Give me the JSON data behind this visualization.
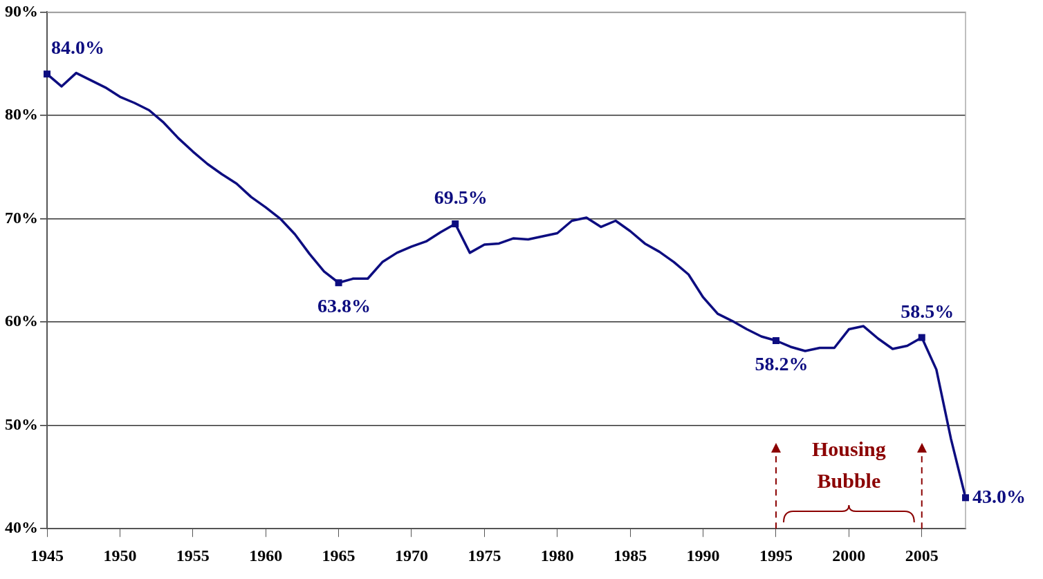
{
  "chart_data": {
    "type": "line",
    "x": [
      1945,
      1946,
      1947,
      1948,
      1949,
      1950,
      1951,
      1952,
      1953,
      1954,
      1955,
      1956,
      1957,
      1958,
      1959,
      1960,
      1961,
      1962,
      1963,
      1964,
      1965,
      1966,
      1967,
      1968,
      1969,
      1970,
      1971,
      1972,
      1973,
      1974,
      1975,
      1976,
      1977,
      1978,
      1979,
      1980,
      1981,
      1982,
      1983,
      1984,
      1985,
      1986,
      1987,
      1988,
      1989,
      1990,
      1991,
      1992,
      1993,
      1994,
      1995,
      1996,
      1997,
      1998,
      1999,
      2000,
      2001,
      2002,
      2003,
      2004,
      2005,
      2006,
      2007,
      2008
    ],
    "series": [
      {
        "color": "#0d0d80",
        "values": [
          84.0,
          82.8,
          84.1,
          83.4,
          82.7,
          81.8,
          81.2,
          80.5,
          79.3,
          77.8,
          76.5,
          75.3,
          74.3,
          73.4,
          72.1,
          71.1,
          70.0,
          68.5,
          66.6,
          64.9,
          63.8,
          64.2,
          64.2,
          65.8,
          66.7,
          67.3,
          67.8,
          68.7,
          69.5,
          66.7,
          67.5,
          67.6,
          68.1,
          68.0,
          68.3,
          68.6,
          69.8,
          70.1,
          69.2,
          69.8,
          68.8,
          67.6,
          66.8,
          65.8,
          64.6,
          62.4,
          60.8,
          60.1,
          59.3,
          58.6,
          58.2,
          57.6,
          57.2,
          57.5,
          57.5,
          59.3,
          59.6,
          58.4,
          57.4,
          57.7,
          58.5,
          55.4,
          48.7,
          43.0
        ],
        "value_labels": [
          "84.0%",
          null,
          null,
          null,
          null,
          null,
          null,
          null,
          null,
          null,
          null,
          null,
          null,
          null,
          null,
          null,
          null,
          null,
          null,
          null,
          "63.8%",
          null,
          null,
          null,
          null,
          null,
          null,
          null,
          "69.5%",
          null,
          null,
          null,
          null,
          null,
          null,
          null,
          null,
          null,
          null,
          null,
          null,
          null,
          null,
          null,
          null,
          null,
          null,
          null,
          null,
          null,
          "58.2%",
          null,
          null,
          null,
          null,
          null,
          null,
          null,
          null,
          null,
          "58.5%",
          null,
          null,
          "43.0%"
        ]
      }
    ],
    "xlim": [
      1945,
      2008
    ],
    "xticks": [
      1945,
      1950,
      1955,
      1960,
      1965,
      1970,
      1975,
      1980,
      1985,
      1990,
      1995,
      2000,
      2005
    ],
    "ylim": [
      40,
      90
    ],
    "yticks": [
      {
        "value": 40,
        "label": "40%"
      },
      {
        "value": 50,
        "label": "50%"
      },
      {
        "value": 60,
        "label": "60%"
      },
      {
        "value": 70,
        "label": "70%"
      },
      {
        "value": 80,
        "label": "80%"
      },
      {
        "value": 90,
        "label": "90%"
      }
    ],
    "grid": "y",
    "legend": false,
    "ref_lines": [
      {
        "axis": "x",
        "value": 1995,
        "color": "#8b0000",
        "line_style": "dashed"
      },
      {
        "axis": "x",
        "value": 2005,
        "color": "#8b0000",
        "line_style": "dashed"
      }
    ],
    "annotations": [
      "Housing Bubble"
    ]
  }
}
